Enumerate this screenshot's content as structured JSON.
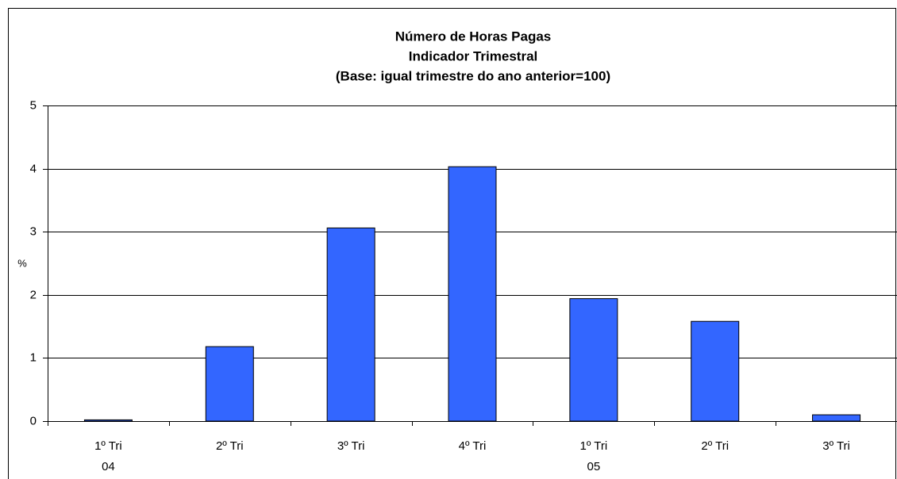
{
  "chart_data": {
    "type": "bar",
    "title": [
      "Número de Horas Pagas",
      "Indicador Trimestral",
      "(Base: igual trimestre do ano anterior=100)"
    ],
    "y_label": "%",
    "categories": [
      "1º Tri",
      "2º Tri",
      "3º Tri",
      "4º Tri",
      "1º Tri",
      "2º Tri",
      "3º Tri"
    ],
    "category_groups": [
      "04",
      null,
      null,
      null,
      "05",
      null,
      null
    ],
    "values": [
      0.02,
      1.18,
      3.06,
      4.03,
      1.94,
      1.58,
      0.1
    ],
    "color": "#3366ff",
    "ylim": [
      0,
      5
    ],
    "yticks": [
      0,
      1,
      2,
      3,
      4,
      5
    ],
    "grid": true
  }
}
